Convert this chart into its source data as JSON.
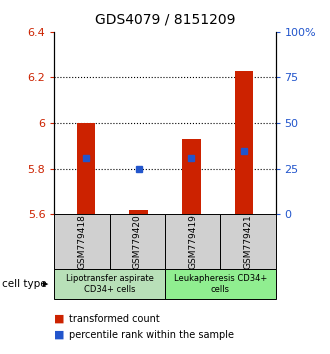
{
  "title": "GDS4079 / 8151209",
  "samples": [
    "GSM779418",
    "GSM779420",
    "GSM779419",
    "GSM779421"
  ],
  "bar_bottom": 5.6,
  "bar_tops": [
    6.0,
    5.62,
    5.93,
    6.23
  ],
  "blue_vals": [
    5.848,
    5.8,
    5.848,
    5.878
  ],
  "ylim_left": [
    5.6,
    6.4
  ],
  "ylim_right": [
    0,
    100
  ],
  "yticks_left": [
    5.6,
    5.8,
    6.0,
    6.2,
    6.4
  ],
  "ytick_labels_left": [
    "5.6",
    "5.8",
    "6",
    "6.2",
    "6.4"
  ],
  "yticks_right": [
    0,
    25,
    50,
    75,
    100
  ],
  "ytick_labels_right": [
    "0",
    "25",
    "50",
    "75",
    "100%"
  ],
  "bar_color": "#cc2200",
  "blue_color": "#2255cc",
  "cell_type_label": "cell type",
  "legend_red": "transformed count",
  "legend_blue": "percentile rank within the sample",
  "bar_width": 0.35,
  "plot_bg": "#ffffff",
  "tick_color_left": "#cc2200",
  "tick_color_right": "#2255cc",
  "gray_box_color": "#d0d0d0",
  "green1_color": "#b8e0b8",
  "green2_color": "#90ee90",
  "group1_label": "Lipotransfer aspirate\nCD34+ cells",
  "group2_label": "Leukapheresis CD34+\ncells"
}
